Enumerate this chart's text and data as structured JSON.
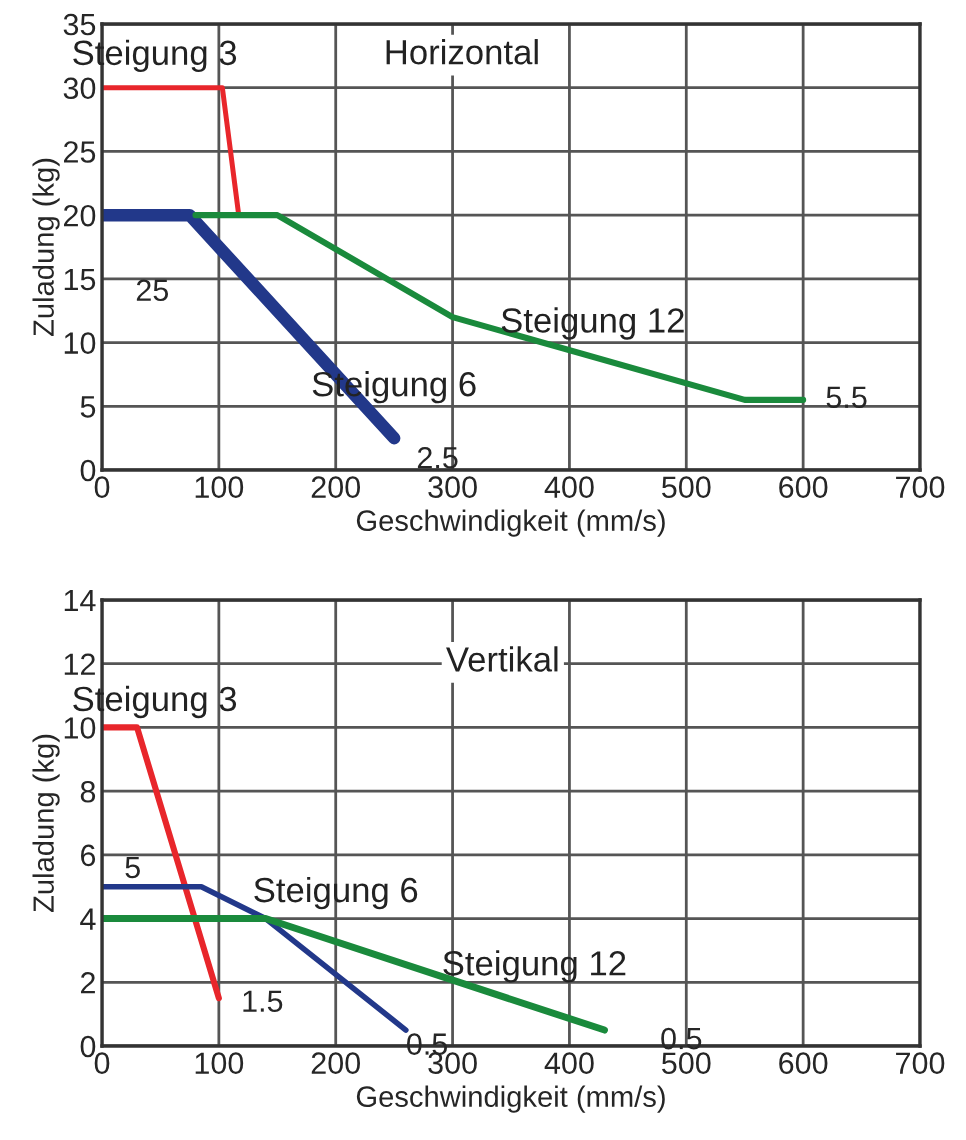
{
  "chart_data": [
    {
      "type": "line",
      "title": "Horizontal",
      "xlabel": "Geschwindigkeit (mm/s)",
      "ylabel": "Zuladung (kg)",
      "xlim": [
        0,
        700
      ],
      "ylim": [
        0,
        35
      ],
      "xticks": [
        0,
        100,
        200,
        300,
        400,
        500,
        600,
        700
      ],
      "yticks": [
        0,
        5,
        10,
        15,
        20,
        25,
        30,
        35
      ],
      "grid": true,
      "series": [
        {
          "name": "Steigung 3",
          "color": "#e8262b",
          "x": [
            0,
            103,
            117
          ],
          "values": [
            30,
            30,
            20
          ]
        },
        {
          "name": "Steigung 6",
          "color": "#22388a",
          "x": [
            0,
            75,
            250
          ],
          "values": [
            20,
            20,
            2.5
          ]
        },
        {
          "name": "Steigung 12",
          "color": "#1a8a3c",
          "x": [
            80,
            150,
            300,
            550,
            600
          ],
          "values": [
            20,
            20,
            12,
            5.5,
            5.5
          ]
        }
      ],
      "annotations": [
        {
          "text": "25",
          "x": 0,
          "y": 20
        },
        {
          "text": "2.5",
          "x": 250,
          "y": 2.5
        },
        {
          "text": "5.5",
          "x": 600,
          "y": 5.5
        }
      ]
    },
    {
      "type": "line",
      "title": "Vertikal",
      "xlabel": "Geschwindigkeit (mm/s)",
      "ylabel": "Zuladung (kg)",
      "xlim": [
        0,
        700
      ],
      "ylim": [
        0,
        14
      ],
      "xticks": [
        0,
        100,
        200,
        300,
        400,
        500,
        600,
        700
      ],
      "yticks": [
        0,
        2,
        4,
        6,
        8,
        10,
        12,
        14
      ],
      "grid": true,
      "series": [
        {
          "name": "Steigung 3",
          "color": "#e8262b",
          "x": [
            0,
            30,
            100
          ],
          "values": [
            10,
            10,
            1.5
          ]
        },
        {
          "name": "Steigung 6",
          "color": "#22388a",
          "x": [
            0,
            85,
            140,
            260
          ],
          "values": [
            5,
            5,
            4,
            0.5
          ]
        },
        {
          "name": "Steigung 12",
          "color": "#1a8a3c",
          "x": [
            0,
            140,
            430
          ],
          "values": [
            4,
            4,
            0.5
          ]
        }
      ],
      "annotations": [
        {
          "text": "5",
          "x": 0,
          "y": 5
        },
        {
          "text": "1.5",
          "x": 100,
          "y": 1.5
        },
        {
          "text": "0.5",
          "x": 260,
          "y": 0.5
        },
        {
          "text": "0.5",
          "x": 430,
          "y": 0.5
        }
      ]
    }
  ]
}
